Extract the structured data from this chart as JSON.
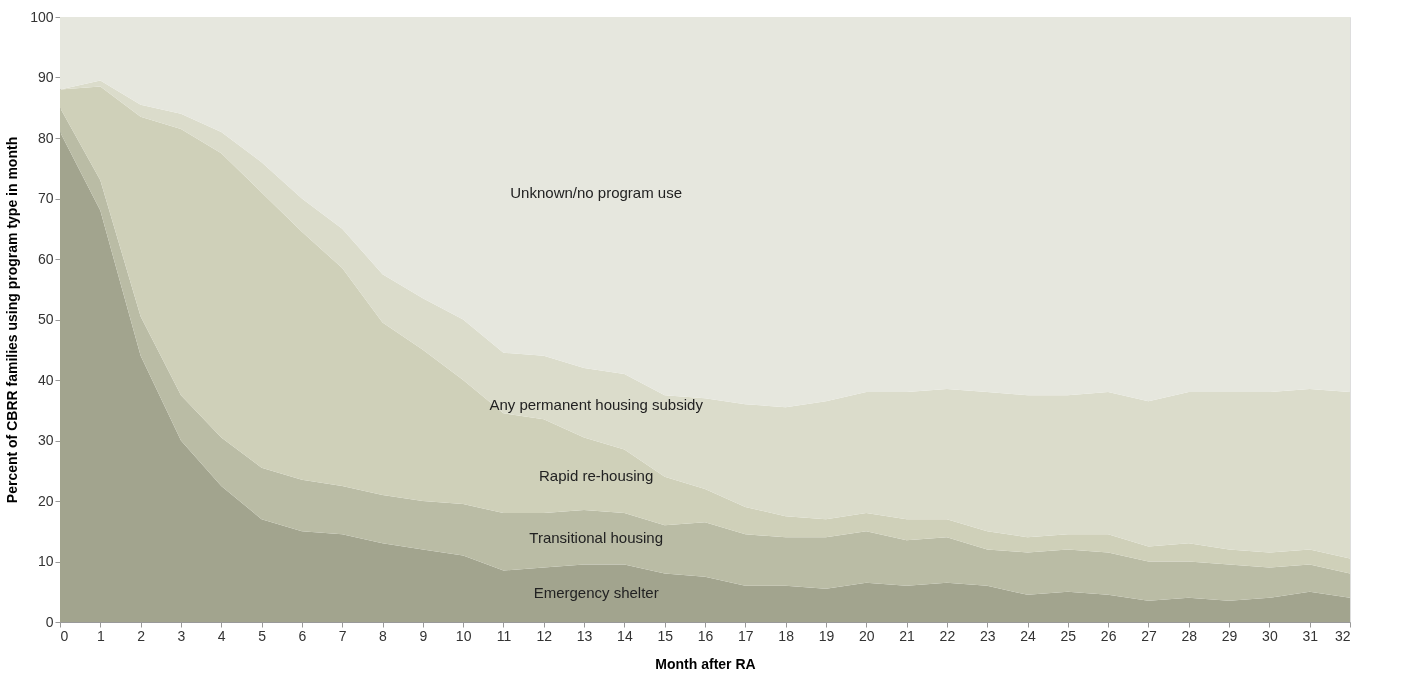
{
  "chart_data": {
    "type": "area",
    "stacked": true,
    "xlabel": "Month after RA",
    "ylabel": "Percent of CBRR families using program type in month",
    "x": [
      0,
      1,
      2,
      3,
      4,
      5,
      6,
      7,
      8,
      9,
      10,
      11,
      12,
      13,
      14,
      15,
      16,
      17,
      18,
      19,
      20,
      21,
      22,
      23,
      24,
      25,
      26,
      27,
      28,
      29,
      30,
      31,
      32
    ],
    "series": [
      {
        "name": "Emergency shelter",
        "color": "#a2a48e",
        "values": [
          81,
          68,
          44,
          30,
          22.5,
          17,
          15,
          14.5,
          13,
          12,
          11,
          8.5,
          9,
          9.5,
          9.5,
          8,
          7.5,
          6,
          6,
          5.5,
          6.5,
          6,
          6.5,
          6,
          4.5,
          5,
          4.5,
          3.5,
          4,
          3.5,
          4,
          5,
          4
        ]
      },
      {
        "name": "Transitional housing",
        "color": "#babca5",
        "values": [
          4,
          5,
          6.5,
          7.5,
          8,
          8.5,
          8.5,
          8,
          8,
          8,
          8.5,
          9.5,
          9,
          9,
          8.5,
          8,
          9,
          8.5,
          8,
          8.5,
          8.5,
          7.5,
          7.5,
          6,
          7,
          7,
          7,
          6.5,
          6,
          6,
          5,
          4.5,
          4
        ]
      },
      {
        "name": "Rapid re-housing",
        "color": "#cfd0b9",
        "values": [
          3,
          15.5,
          33,
          44,
          47,
          45.5,
          41,
          36,
          28.5,
          25,
          20.5,
          16.5,
          15.5,
          12,
          10.5,
          8,
          5.5,
          4.5,
          3.5,
          3,
          3,
          3.5,
          3,
          3,
          2.5,
          2.5,
          3,
          2.5,
          3,
          2.5,
          2.5,
          2.5,
          2.5
        ]
      },
      {
        "name": "Any permanent housing subsidy",
        "color": "#dbdccb",
        "values": [
          0,
          1,
          2,
          2.5,
          3.5,
          5,
          5.5,
          6.5,
          8,
          8.5,
          10,
          10,
          10.5,
          11.5,
          12.5,
          13.5,
          15,
          17,
          18,
          19.5,
          20,
          21,
          21.5,
          23,
          23.5,
          23,
          23.5,
          24,
          25,
          26,
          26.5,
          26.5,
          27.5
        ]
      },
      {
        "name": "Unknown/no program use",
        "color": "#e6e7de",
        "values": [
          12,
          10.5,
          14.5,
          16,
          19,
          24,
          30,
          35,
          42.5,
          46.5,
          50,
          55.5,
          56,
          58,
          59,
          62.5,
          63,
          64,
          64.5,
          63.5,
          62,
          62,
          61.5,
          62,
          62.5,
          62.5,
          62,
          63.5,
          62,
          62,
          62,
          61.5,
          62
        ]
      }
    ],
    "xlim": [
      0,
      32
    ],
    "xticks": [
      0,
      1,
      2,
      3,
      4,
      5,
      6,
      7,
      8,
      9,
      10,
      11,
      12,
      13,
      14,
      15,
      16,
      17,
      18,
      19,
      20,
      21,
      22,
      23,
      24,
      25,
      26,
      27,
      28,
      29,
      30,
      31,
      32
    ],
    "ylim": [
      0,
      100
    ],
    "yticks": [
      0,
      10,
      20,
      30,
      40,
      50,
      60,
      70,
      80,
      90,
      100
    ],
    "legend": false
  }
}
